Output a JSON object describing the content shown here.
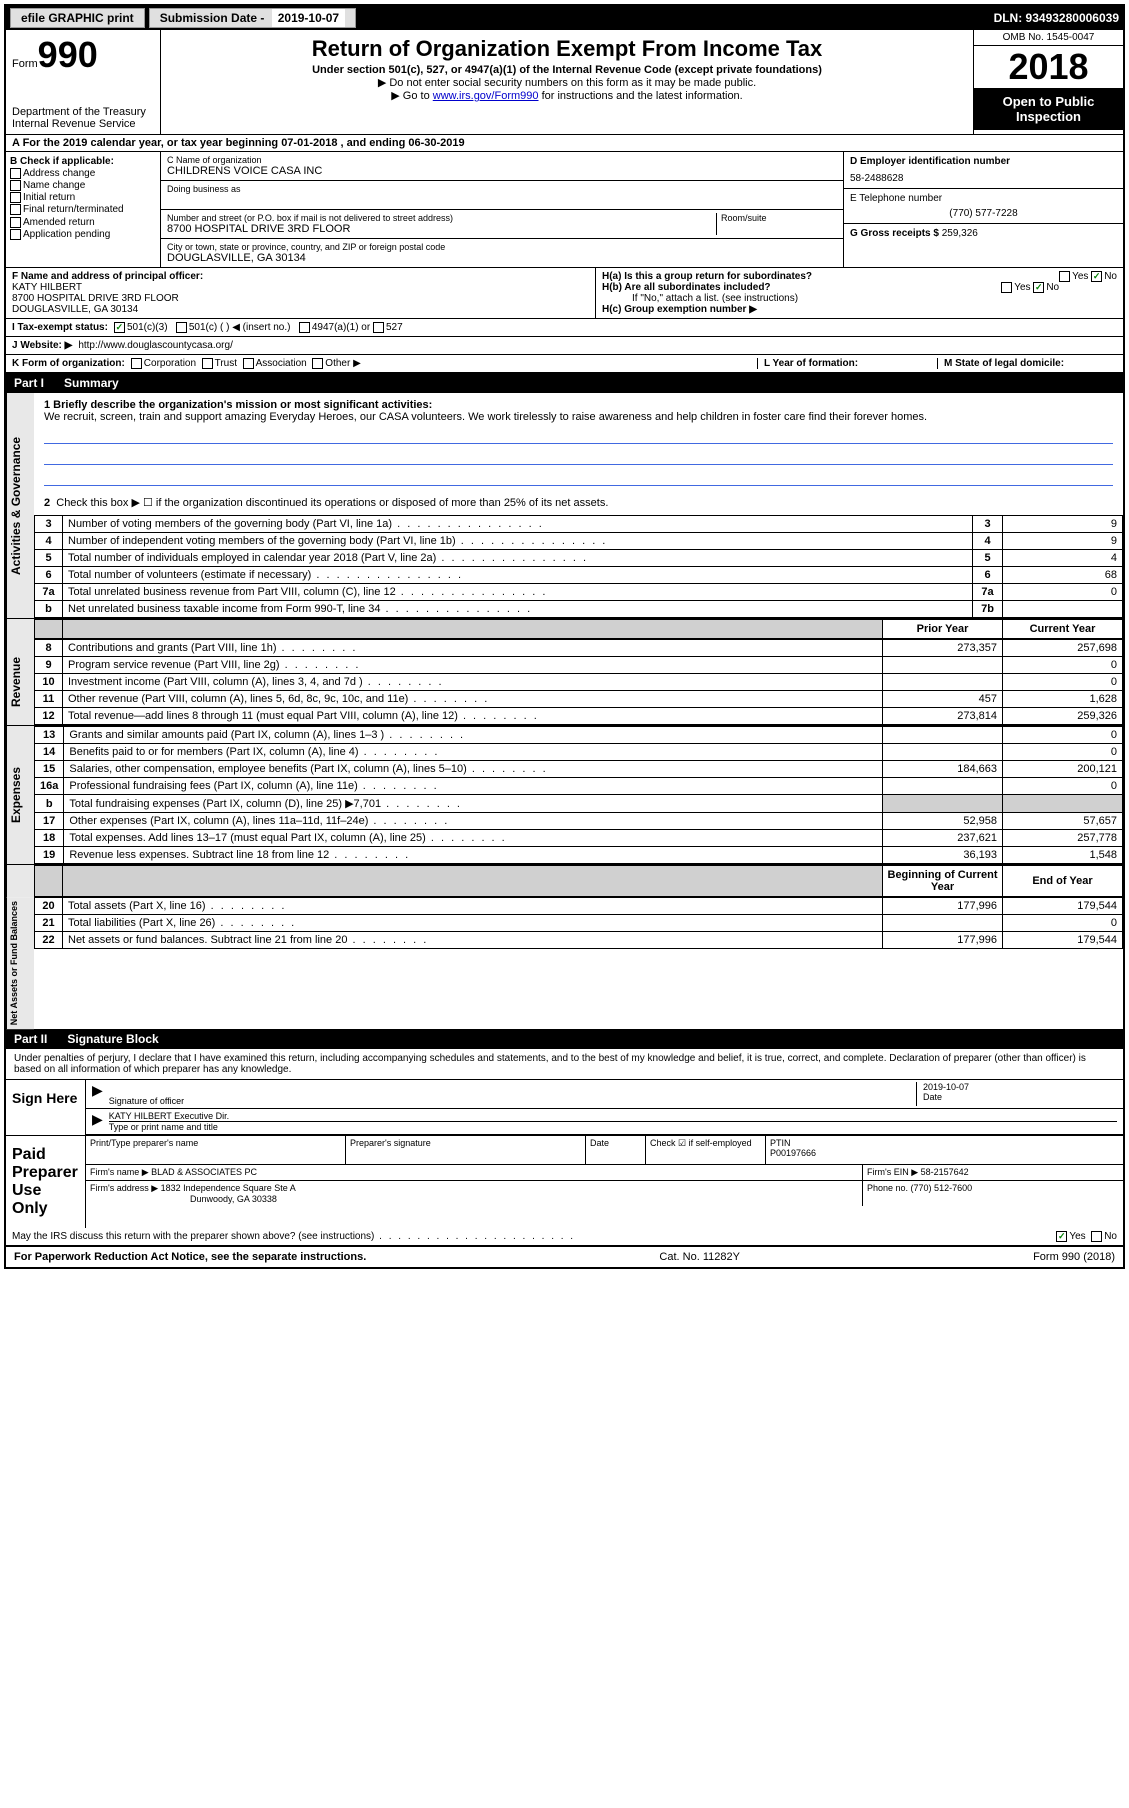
{
  "topbar": {
    "efile": "efile GRAPHIC print",
    "sub_label": "Submission Date - ",
    "sub_date": "2019-10-07",
    "dln": "DLN: 93493280006039"
  },
  "header": {
    "form_label": "Form",
    "form_num": "990",
    "dept": "Department of the Treasury\nInternal Revenue Service",
    "title": "Return of Organization Exempt From Income Tax",
    "subtitle": "Under section 501(c), 527, or 4947(a)(1) of the Internal Revenue Code (except private foundations)",
    "note1": "Do not enter social security numbers on this form as it may be made public.",
    "note2_pre": "Go to ",
    "note2_link": "www.irs.gov/Form990",
    "note2_post": " for instructions and the latest information.",
    "omb": "OMB No. 1545-0047",
    "year": "2018",
    "inspect": "Open to Public Inspection"
  },
  "row_a": "A For the 2019 calendar year, or tax year beginning 07-01-2018    , and ending 06-30-2019",
  "col_b": {
    "label": "B Check if applicable:",
    "items": [
      "Address change",
      "Name change",
      "Initial return",
      "Final return/terminated",
      "Amended return",
      "Application pending"
    ]
  },
  "col_c": {
    "name_label": "C Name of organization",
    "name": "CHILDRENS VOICE CASA INC",
    "dba_label": "Doing business as",
    "addr_label": "Number and street (or P.O. box if mail is not delivered to street address)",
    "addr": "8700 HOSPITAL DRIVE 3RD FLOOR",
    "suite_label": "Room/suite",
    "city_label": "City or town, state or province, country, and ZIP or foreign postal code",
    "city": "DOUGLASVILLE, GA  30134"
  },
  "col_d": {
    "ein_label": "D Employer identification number",
    "ein": "58-2488628",
    "phone_label": "E Telephone number",
    "phone": "(770) 577-7228",
    "gross_label": "G Gross receipts $ ",
    "gross": "259,326"
  },
  "row_f": {
    "label": "F  Name and address of principal officer:",
    "name": "KATY HILBERT",
    "addr1": "8700 HOSPITAL DRIVE 3RD FLOOR",
    "addr2": "DOUGLASVILLE, GA  30134"
  },
  "row_h": {
    "ha": "H(a)  Is this a group return for subordinates?",
    "hb": "H(b)  Are all subordinates included?",
    "hb_note": "If \"No,\" attach a list. (see instructions)",
    "hc": "H(c)  Group exemption number ▶"
  },
  "row_i": {
    "label": "I   Tax-exempt status:",
    "opts": [
      "501(c)(3)",
      "501(c) (  ) ◀ (insert no.)",
      "4947(a)(1) or",
      "527"
    ]
  },
  "row_j": {
    "label": "J   Website: ▶ ",
    "url": "http://www.douglascountycasa.org/"
  },
  "row_k": "K Form of organization:",
  "row_k_opts": [
    "Corporation",
    "Trust",
    "Association",
    "Other ▶"
  ],
  "row_l": "L Year of formation:",
  "row_m": "M State of legal domicile:",
  "part1": {
    "num": "Part I",
    "title": "Summary",
    "line1_label": "1  Briefly describe the organization's mission or most significant activities:",
    "mission": "We recruit, screen, train and support amazing Everyday Heroes, our CASA volunteers. We work tirelessly to raise awareness and help children in foster care find their forever homes.",
    "line2": "Check this box ▶ ☐  if the organization discontinued its operations or disposed of more than 25% of its net assets.",
    "rows_gov": [
      {
        "n": "3",
        "d": "Number of voting members of the governing body (Part VI, line 1a)",
        "b": "3",
        "v": "9"
      },
      {
        "n": "4",
        "d": "Number of independent voting members of the governing body (Part VI, line 1b)",
        "b": "4",
        "v": "9"
      },
      {
        "n": "5",
        "d": "Total number of individuals employed in calendar year 2018 (Part V, line 2a)",
        "b": "5",
        "v": "4"
      },
      {
        "n": "6",
        "d": "Total number of volunteers (estimate if necessary)",
        "b": "6",
        "v": "68"
      },
      {
        "n": "7a",
        "d": "Total unrelated business revenue from Part VIII, column (C), line 12",
        "b": "7a",
        "v": "0"
      },
      {
        "n": "b",
        "d": "Net unrelated business taxable income from Form 990-T, line 34",
        "b": "7b",
        "v": ""
      }
    ],
    "col_prior": "Prior Year",
    "col_current": "Current Year",
    "rows_rev": [
      {
        "n": "8",
        "d": "Contributions and grants (Part VIII, line 1h)",
        "p": "273,357",
        "c": "257,698"
      },
      {
        "n": "9",
        "d": "Program service revenue (Part VIII, line 2g)",
        "p": "",
        "c": "0"
      },
      {
        "n": "10",
        "d": "Investment income (Part VIII, column (A), lines 3, 4, and 7d )",
        "p": "",
        "c": "0"
      },
      {
        "n": "11",
        "d": "Other revenue (Part VIII, column (A), lines 5, 6d, 8c, 9c, 10c, and 11e)",
        "p": "457",
        "c": "1,628"
      },
      {
        "n": "12",
        "d": "Total revenue—add lines 8 through 11 (must equal Part VIII, column (A), line 12)",
        "p": "273,814",
        "c": "259,326"
      }
    ],
    "rows_exp": [
      {
        "n": "13",
        "d": "Grants and similar amounts paid (Part IX, column (A), lines 1–3 )",
        "p": "",
        "c": "0"
      },
      {
        "n": "14",
        "d": "Benefits paid to or for members (Part IX, column (A), line 4)",
        "p": "",
        "c": "0"
      },
      {
        "n": "15",
        "d": "Salaries, other compensation, employee benefits (Part IX, column (A), lines 5–10)",
        "p": "184,663",
        "c": "200,121"
      },
      {
        "n": "16a",
        "d": "Professional fundraising fees (Part IX, column (A), line 11e)",
        "p": "",
        "c": "0"
      },
      {
        "n": "b",
        "d": "Total fundraising expenses (Part IX, column (D), line 25) ▶7,701",
        "p": "GREY",
        "c": "GREY"
      },
      {
        "n": "17",
        "d": "Other expenses (Part IX, column (A), lines 11a–11d, 11f–24e)",
        "p": "52,958",
        "c": "57,657"
      },
      {
        "n": "18",
        "d": "Total expenses. Add lines 13–17 (must equal Part IX, column (A), line 25)",
        "p": "237,621",
        "c": "257,778"
      },
      {
        "n": "19",
        "d": "Revenue less expenses. Subtract line 18 from line 12",
        "p": "36,193",
        "c": "1,548"
      }
    ],
    "col_begin": "Beginning of Current Year",
    "col_end": "End of Year",
    "rows_net": [
      {
        "n": "20",
        "d": "Total assets (Part X, line 16)",
        "p": "177,996",
        "c": "179,544"
      },
      {
        "n": "21",
        "d": "Total liabilities (Part X, line 26)",
        "p": "",
        "c": "0"
      },
      {
        "n": "22",
        "d": "Net assets or fund balances. Subtract line 21 from line 20",
        "p": "177,996",
        "c": "179,544"
      }
    ]
  },
  "part2": {
    "num": "Part II",
    "title": "Signature Block",
    "decl": "Under penalties of perjury, I declare that I have examined this return, including accompanying schedules and statements, and to the best of my knowledge and belief, it is true, correct, and complete. Declaration of preparer (other than officer) is based on all information of which preparer has any knowledge."
  },
  "sign": {
    "here": "Sign Here",
    "sig_label": "Signature of officer",
    "date_label": "Date",
    "date": "2019-10-07",
    "name": "KATY HILBERT  Executive Dir.",
    "name_label": "Type or print name and title"
  },
  "prep": {
    "label": "Paid Preparer Use Only",
    "h1": "Print/Type preparer's name",
    "h2": "Preparer's signature",
    "h3": "Date",
    "h4": "Check ☑ if self-employed",
    "h5_label": "PTIN",
    "h5": "P00197666",
    "firm_label": "Firm's name    ▶ ",
    "firm": "BLAD & ASSOCIATES PC",
    "ein_label": "Firm's EIN ▶ ",
    "ein": "58-2157642",
    "addr_label": "Firm's address ▶ ",
    "addr1": "1832 Independence Square Ste A",
    "addr2": "Dunwoody, GA  30338",
    "phone_label": "Phone no. ",
    "phone": "(770) 512-7600"
  },
  "discuss": "May the IRS discuss this return with the preparer shown above? (see instructions)",
  "footer": {
    "left": "For Paperwork Reduction Act Notice, see the separate instructions.",
    "mid": "Cat. No. 11282Y",
    "right": "Form 990 (2018)"
  },
  "vtabs": {
    "gov": "Activities & Governance",
    "rev": "Revenue",
    "exp": "Expenses",
    "net": "Net Assets or Fund Balances"
  }
}
